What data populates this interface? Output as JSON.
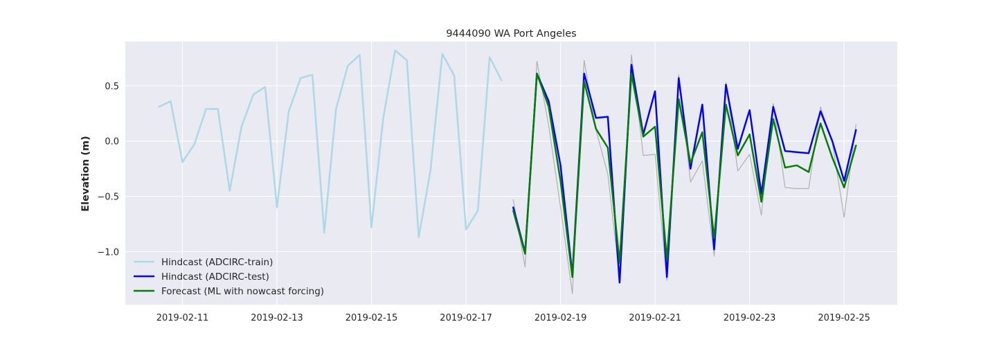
{
  "chart_data": {
    "type": "line",
    "title": "9444090 WA Port Angeles",
    "xlabel": "",
    "ylabel": "Elevation (m)",
    "xlim": [
      "2019-02-09T19:00",
      "2019-02-26T03:00"
    ],
    "ylim": [
      -1.48,
      0.9
    ],
    "x_ticks": [
      "2019-02-11",
      "2019-02-13",
      "2019-02-15",
      "2019-02-17",
      "2019-02-19",
      "2019-02-21",
      "2019-02-23",
      "2019-02-25"
    ],
    "y_ticks": [
      -1.0,
      -0.5,
      0.0,
      0.5
    ],
    "y_tick_labels": [
      "−1.0",
      "−0.5",
      "0.0",
      "0.5"
    ],
    "grid": true,
    "legend_position": "lower-left",
    "series": [
      {
        "name": "",
        "color": "#b0b0b0",
        "width": 1.2,
        "in_legend": false,
        "x": [
          "2019-02-18T00:00",
          "2019-02-18T06:00",
          "2019-02-18T12:00",
          "2019-02-18T18:00",
          "2019-02-19T00:00",
          "2019-02-19T06:00",
          "2019-02-19T12:00",
          "2019-02-19T18:00",
          "2019-02-20T00:00",
          "2019-02-20T06:00",
          "2019-02-20T12:00",
          "2019-02-20T18:00",
          "2019-02-21T00:00",
          "2019-02-21T06:00",
          "2019-02-21T12:00",
          "2019-02-21T18:00",
          "2019-02-22T00:00",
          "2019-02-22T06:00",
          "2019-02-22T12:00",
          "2019-02-22T18:00",
          "2019-02-23T00:00",
          "2019-02-23T06:00",
          "2019-02-23T12:00",
          "2019-02-23T18:00",
          "2019-02-24T00:00",
          "2019-02-24T06:00",
          "2019-02-24T12:00",
          "2019-02-24T18:00",
          "2019-02-25T00:00",
          "2019-02-25T06:00"
        ],
        "y": [
          -0.53,
          -1.14,
          0.72,
          0.14,
          -0.6,
          -1.38,
          0.73,
          0.1,
          -0.3,
          -1.24,
          0.78,
          -0.13,
          -0.12,
          -1.26,
          0.6,
          -0.37,
          -0.18,
          -1.04,
          0.53,
          -0.27,
          -0.12,
          -0.67,
          0.34,
          -0.42,
          -0.43,
          -0.43,
          0.31,
          -0.01,
          -0.69,
          0.15
        ]
      },
      {
        "name": "Hindcast (ADCIRC-train)",
        "color": "#add8e6",
        "width": 2.5,
        "in_legend": true,
        "x": [
          "2019-02-10T12:00",
          "2019-02-10T18:00",
          "2019-02-11T00:00",
          "2019-02-11T06:00",
          "2019-02-11T12:00",
          "2019-02-11T18:00",
          "2019-02-12T00:00",
          "2019-02-12T06:00",
          "2019-02-12T12:00",
          "2019-02-12T18:00",
          "2019-02-13T00:00",
          "2019-02-13T06:00",
          "2019-02-13T12:00",
          "2019-02-13T18:00",
          "2019-02-14T00:00",
          "2019-02-14T06:00",
          "2019-02-14T12:00",
          "2019-02-14T18:00",
          "2019-02-15T00:00",
          "2019-02-15T06:00",
          "2019-02-15T12:00",
          "2019-02-15T18:00",
          "2019-02-16T00:00",
          "2019-02-16T06:00",
          "2019-02-16T12:00",
          "2019-02-16T18:00",
          "2019-02-17T00:00",
          "2019-02-17T06:00",
          "2019-02-17T12:00",
          "2019-02-17T18:00"
        ],
        "y": [
          0.31,
          0.36,
          -0.19,
          -0.03,
          0.29,
          0.29,
          -0.45,
          0.13,
          0.42,
          0.49,
          -0.6,
          0.27,
          0.57,
          0.6,
          -0.83,
          0.29,
          0.68,
          0.78,
          -0.78,
          0.21,
          0.82,
          0.73,
          -0.87,
          -0.26,
          0.79,
          0.59,
          -0.8,
          -0.63,
          0.76,
          0.55
        ]
      },
      {
        "name": "Hindcast (ADCIRC-test)",
        "color": "#0000ff",
        "width": 2.5,
        "in_legend": true,
        "x": [
          "2019-02-18T00:00",
          "2019-02-18T06:00",
          "2019-02-18T12:00",
          "2019-02-18T18:00",
          "2019-02-19T00:00",
          "2019-02-19T06:00",
          "2019-02-19T12:00",
          "2019-02-19T18:00",
          "2019-02-20T00:00",
          "2019-02-20T06:00",
          "2019-02-20T12:00",
          "2019-02-20T18:00",
          "2019-02-21T00:00",
          "2019-02-21T06:00",
          "2019-02-21T12:00",
          "2019-02-21T18:00",
          "2019-02-22T00:00",
          "2019-02-22T06:00",
          "2019-02-22T12:00",
          "2019-02-22T18:00",
          "2019-02-23T00:00",
          "2019-02-23T06:00",
          "2019-02-23T12:00",
          "2019-02-23T18:00",
          "2019-02-24T00:00",
          "2019-02-24T06:00",
          "2019-02-24T12:00",
          "2019-02-24T18:00",
          "2019-02-25T00:00",
          "2019-02-25T06:00"
        ],
        "y": [
          -0.6,
          -1.01,
          0.61,
          0.36,
          -0.22,
          -1.21,
          0.61,
          0.21,
          0.22,
          -1.28,
          0.69,
          0.06,
          0.45,
          -1.23,
          0.57,
          -0.25,
          0.33,
          -0.98,
          0.51,
          -0.07,
          0.28,
          -0.48,
          0.31,
          -0.09,
          -0.1,
          -0.11,
          0.27,
          0.0,
          -0.36,
          0.1
        ]
      },
      {
        "name": "Forecast (ML with nowcast forcing)",
        "color": "#008000",
        "width": 2.5,
        "in_legend": true,
        "x": [
          "2019-02-18T00:00",
          "2019-02-18T06:00",
          "2019-02-18T12:00",
          "2019-02-18T18:00",
          "2019-02-19T00:00",
          "2019-02-19T06:00",
          "2019-02-19T12:00",
          "2019-02-19T18:00",
          "2019-02-20T00:00",
          "2019-02-20T06:00",
          "2019-02-20T12:00",
          "2019-02-20T18:00",
          "2019-02-21T00:00",
          "2019-02-21T06:00",
          "2019-02-21T12:00",
          "2019-02-21T18:00",
          "2019-02-22T00:00",
          "2019-02-22T06:00",
          "2019-02-22T12:00",
          "2019-02-22T18:00",
          "2019-02-23T00:00",
          "2019-02-23T06:00",
          "2019-02-23T12:00",
          "2019-02-23T18:00",
          "2019-02-24T00:00",
          "2019-02-24T06:00",
          "2019-02-24T12:00",
          "2019-02-24T18:00",
          "2019-02-25T00:00",
          "2019-02-25T06:00"
        ],
        "y": [
          -0.63,
          -1.02,
          0.61,
          0.31,
          -0.36,
          -1.23,
          0.54,
          0.11,
          -0.06,
          -1.1,
          0.61,
          0.04,
          0.13,
          -1.07,
          0.38,
          -0.2,
          0.08,
          -0.88,
          0.33,
          -0.13,
          0.06,
          -0.55,
          0.2,
          -0.24,
          -0.22,
          -0.28,
          0.16,
          -0.15,
          -0.42,
          -0.04
        ]
      }
    ]
  }
}
